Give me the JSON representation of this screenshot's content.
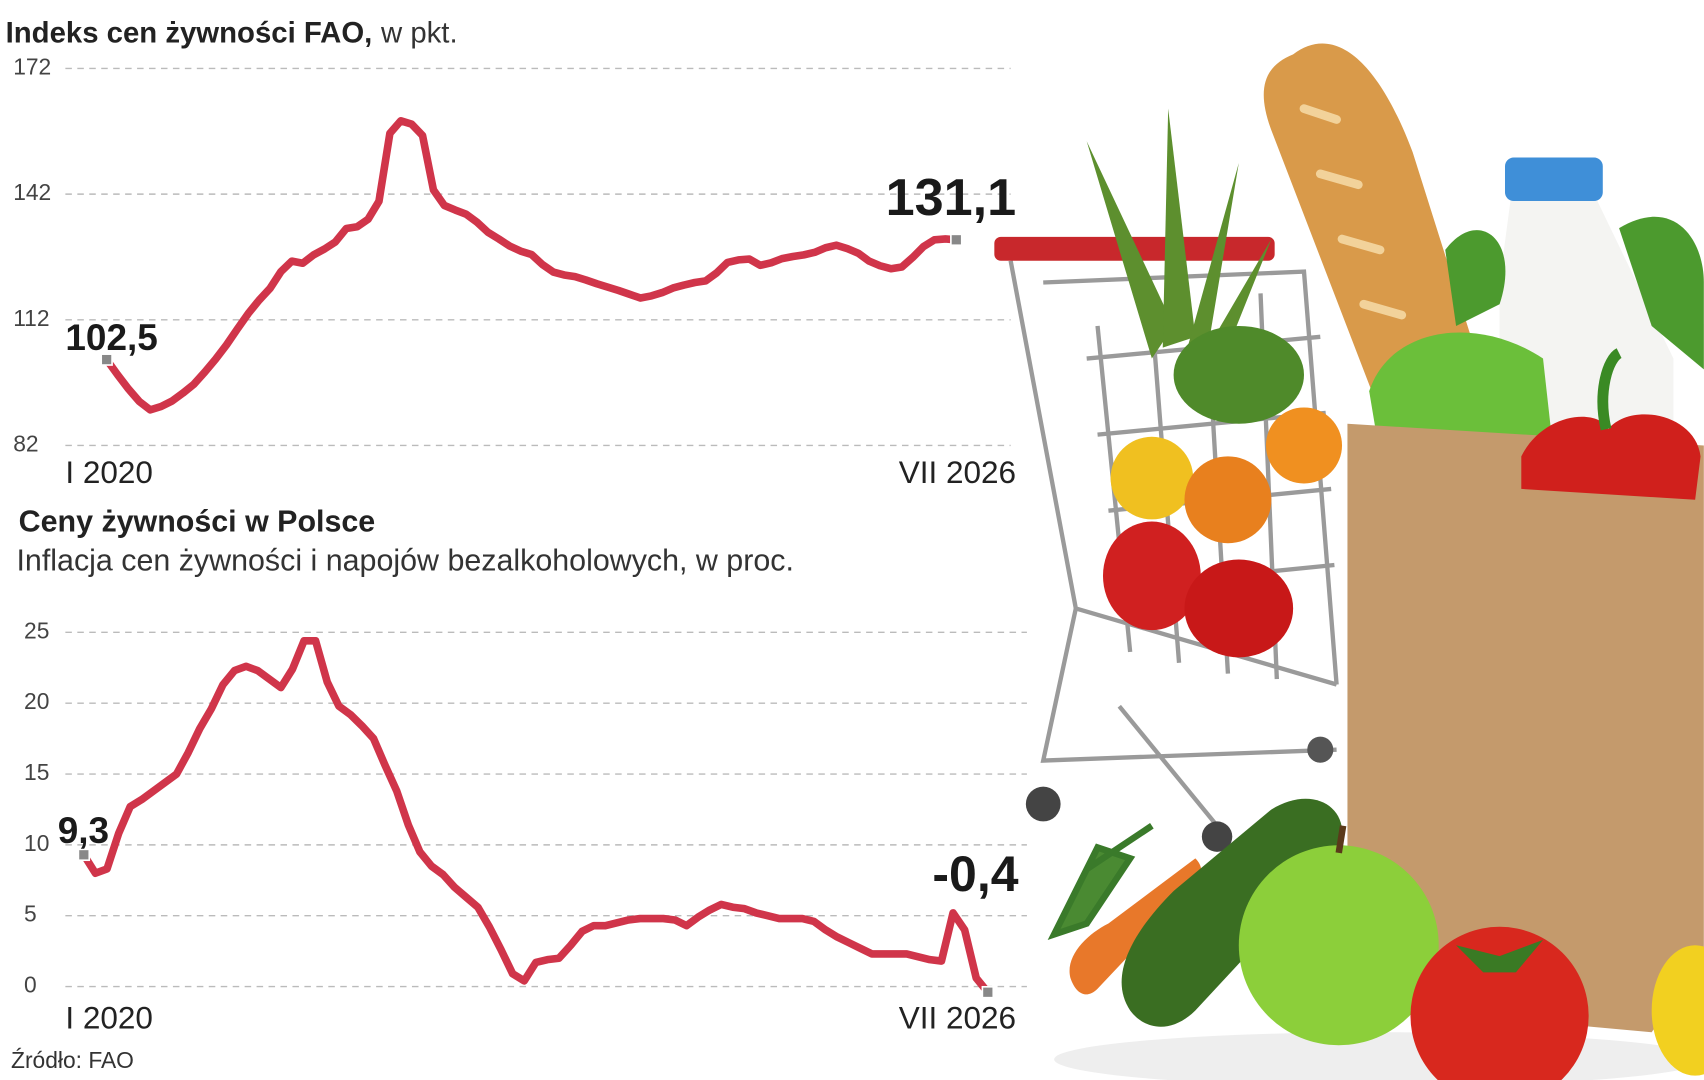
{
  "chart_data": [
    {
      "type": "line",
      "title": "Indeks cen żywności FAO,",
      "unit": "w pkt.",
      "categories": [
        "I 2020",
        null,
        null,
        null,
        null,
        null,
        null,
        null,
        null,
        null,
        null,
        null,
        null,
        null,
        null,
        null,
        null,
        null,
        null,
        null,
        null,
        null,
        null,
        null,
        null,
        null,
        null,
        null,
        null,
        null,
        null,
        null,
        null,
        null,
        null,
        null,
        null,
        null,
        null,
        null,
        null,
        null,
        null,
        null,
        null,
        null,
        null,
        null,
        null,
        null,
        null,
        null,
        null,
        null,
        null,
        null,
        null,
        null,
        null,
        null,
        null,
        null,
        null,
        null,
        null,
        null,
        null,
        null,
        null,
        null,
        null,
        null,
        null,
        null,
        null,
        null,
        null,
        null,
        "VII 2026"
      ],
      "values": [
        102.5,
        98.9,
        95.5,
        92.5,
        90.5,
        91.3,
        92.6,
        94.5,
        96.6,
        99.5,
        102.6,
        106,
        109.8,
        113.5,
        116.7,
        119.5,
        123.5,
        126,
        125.5,
        127.5,
        128.9,
        130.6,
        133.8,
        134.2,
        136,
        140.3,
        156.5,
        159.5,
        158.7,
        156,
        143,
        139.3,
        138.2,
        137.2,
        135.3,
        132.9,
        131.3,
        129.6,
        128.4,
        127.6,
        125.2,
        123.4,
        122.7,
        122.3,
        121.5,
        120.6,
        119.8,
        119,
        118.1,
        117.2,
        117.7,
        118.5,
        119.6,
        120.3,
        120.9,
        121.3,
        123.2,
        125.7,
        126.3,
        126.5,
        125,
        125.6,
        126.6,
        127.1,
        127.5,
        128.1,
        129.2,
        129.8,
        129,
        127.9,
        126,
        124.9,
        124.2,
        124.6,
        126.9,
        129.5,
        131.1,
        131.3,
        131.1
      ],
      "value_labels": [
        "102,5",
        null,
        null,
        null,
        null,
        null,
        null,
        null,
        null,
        null,
        null,
        null,
        null,
        null,
        null,
        null,
        null,
        null,
        null,
        null,
        null,
        null,
        null,
        null,
        null,
        null,
        null,
        null,
        null,
        null,
        null,
        null,
        null,
        null,
        null,
        null,
        null,
        null,
        null,
        null,
        null,
        null,
        null,
        null,
        null,
        null,
        null,
        null,
        null,
        null,
        null,
        null,
        null,
        null,
        null,
        null,
        null,
        null,
        null,
        null,
        null,
        null,
        null,
        null,
        null,
        null,
        null,
        null,
        null,
        null,
        null,
        null,
        null,
        null,
        null,
        null,
        null,
        null,
        "131,1"
      ],
      "color": "#d0354a",
      "ylim": [
        82,
        172
      ],
      "yticks": [
        82,
        112,
        142,
        172
      ],
      "grid": true
    },
    {
      "type": "line",
      "title": "Ceny żywności w Polsce",
      "subtitle": "Inflacja cen żywności i napojów bezalkoholowych, w proc.",
      "categories": [
        "I 2020",
        null,
        null,
        null,
        null,
        null,
        null,
        null,
        null,
        null,
        null,
        null,
        null,
        null,
        null,
        null,
        null,
        null,
        null,
        null,
        null,
        null,
        null,
        null,
        null,
        null,
        null,
        null,
        null,
        null,
        null,
        null,
        null,
        null,
        null,
        null,
        null,
        null,
        null,
        null,
        null,
        null,
        null,
        null,
        null,
        null,
        null,
        null,
        null,
        null,
        null,
        null,
        null,
        null,
        null,
        null,
        null,
        null,
        null,
        null,
        null,
        null,
        null,
        null,
        null,
        null,
        null,
        null,
        null,
        null,
        null,
        null,
        null,
        null,
        null,
        null,
        null,
        null,
        "VII 2026"
      ],
      "values": [
        9.3,
        8,
        8.3,
        10.8,
        12.7,
        13.2,
        13.8,
        14.4,
        15,
        16.5,
        18.2,
        19.6,
        21.3,
        22.3,
        22.6,
        22.3,
        21.7,
        21.1,
        22.4,
        24.4,
        24.4,
        21.5,
        19.8,
        19.2,
        18.4,
        17.5,
        15.6,
        13.8,
        11.4,
        9.5,
        8.5,
        7.9,
        7,
        6.3,
        5.6,
        4.2,
        2.6,
        0.9,
        0.4,
        1.7,
        1.9,
        2,
        2.9,
        3.9,
        4.3,
        4.3,
        4.5,
        4.7,
        4.8,
        4.8,
        4.8,
        4.7,
        4.3,
        4.9,
        5.4,
        5.8,
        5.6,
        5.5,
        5.2,
        5,
        4.8,
        4.8,
        4.8,
        4.6,
        4,
        3.5,
        3.1,
        2.7,
        2.3,
        2.3,
        2.3,
        2.3,
        2.1,
        1.9,
        1.8,
        5.2,
        4,
        0.6,
        -0.4
      ],
      "value_labels": [
        "9,3",
        null,
        null,
        null,
        null,
        null,
        null,
        null,
        null,
        null,
        null,
        null,
        null,
        null,
        null,
        null,
        null,
        null,
        null,
        null,
        null,
        null,
        null,
        null,
        null,
        null,
        null,
        null,
        null,
        null,
        null,
        null,
        null,
        null,
        null,
        null,
        null,
        null,
        null,
        null,
        null,
        null,
        null,
        null,
        null,
        null,
        null,
        null,
        null,
        null,
        null,
        null,
        null,
        null,
        null,
        null,
        null,
        null,
        null,
        null,
        null,
        null,
        null,
        null,
        null,
        null,
        null,
        null,
        null,
        null,
        null,
        null,
        null,
        null,
        null,
        null,
        null,
        null,
        "-0,4"
      ],
      "color": "#d0354a",
      "ylim": [
        0,
        25
      ],
      "yticks": [
        0,
        5,
        10,
        15,
        20,
        25
      ],
      "grid": true
    }
  ],
  "source": "Źródło: FAO"
}
